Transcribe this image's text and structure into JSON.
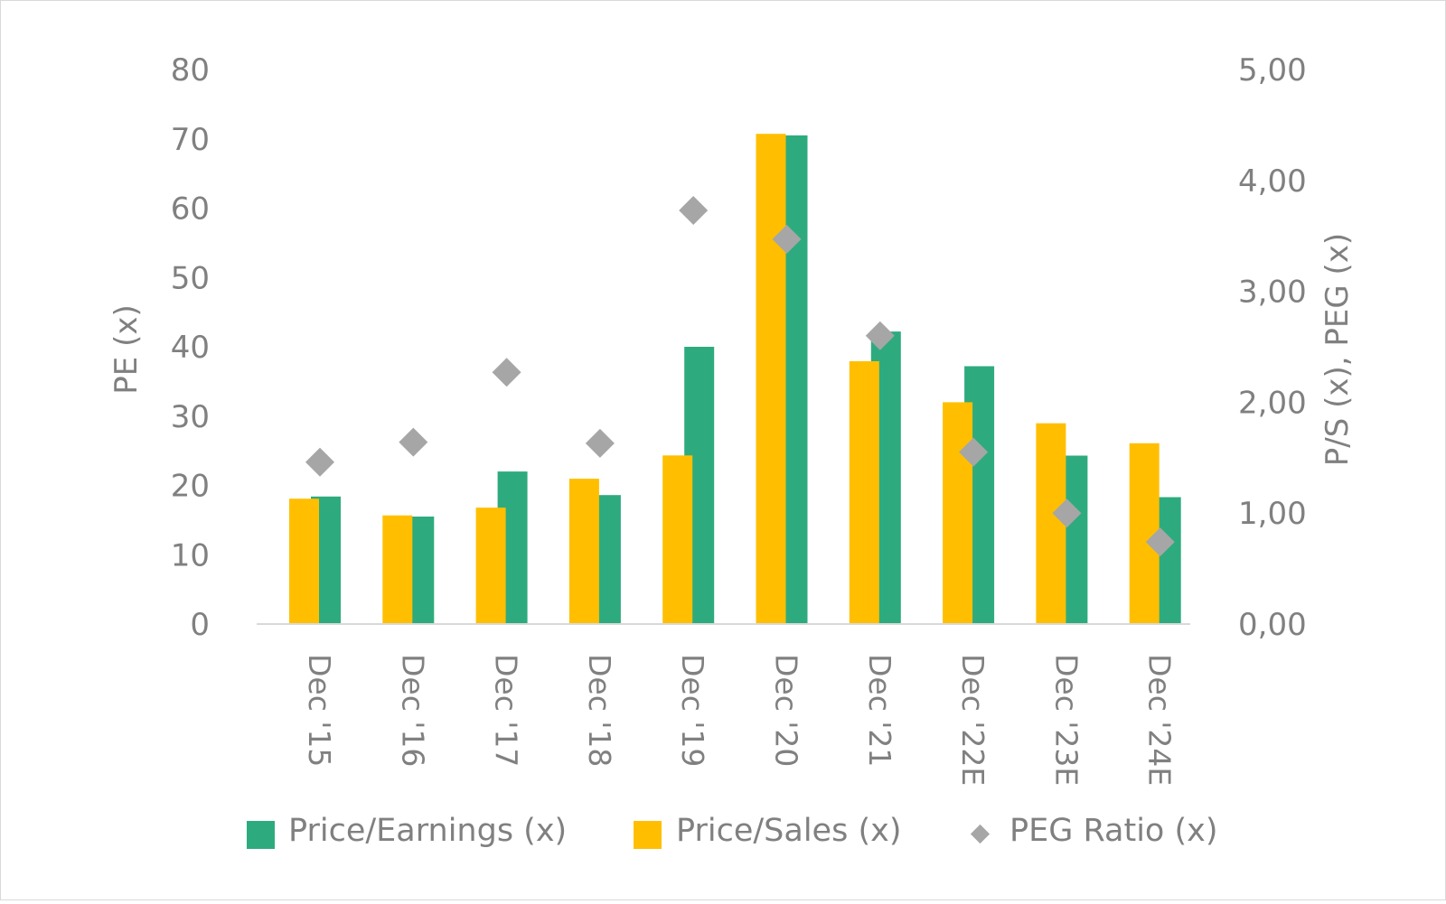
{
  "chart_data": {
    "type": "bar",
    "title": "",
    "categories": [
      "Dec '15",
      "Dec '16",
      "Dec '17",
      "Dec '18",
      "Dec '19",
      "Dec '20",
      "Dec '21",
      "Dec '22E",
      "Dec '23E",
      "Dec '24E"
    ],
    "series": [
      {
        "name": "Price/Earnings (x)",
        "type": "bar",
        "axis": "left",
        "color": "#2eab7e",
        "values": [
          18.4,
          15.5,
          22.0,
          18.6,
          40.0,
          70.5,
          42.2,
          37.2,
          24.3,
          18.3
        ]
      },
      {
        "name": "Price/Sales (x)",
        "type": "bar",
        "axis": "right",
        "color": "#ffbf00",
        "values": [
          1.13,
          0.98,
          1.05,
          1.31,
          1.52,
          4.42,
          2.37,
          2.0,
          1.81,
          1.63
        ]
      },
      {
        "name": "PEG Ratio (x)",
        "type": "scatter",
        "axis": "right",
        "color": "#a6a6a6",
        "values": [
          1.46,
          1.64,
          2.27,
          1.63,
          3.73,
          3.47,
          2.6,
          1.55,
          1.0,
          0.74
        ]
      }
    ],
    "y_left": {
      "label": "PE (x)",
      "ylim": [
        0,
        80
      ],
      "ticks": [
        "0",
        "10",
        "20",
        "30",
        "40",
        "50",
        "60",
        "70",
        "80"
      ]
    },
    "y_right": {
      "label": "P/S (x), PEG (x)",
      "ylim": [
        0,
        5
      ],
      "ticks": [
        "0,00",
        "1,00",
        "2,00",
        "3,00",
        "4,00",
        "5,00"
      ]
    },
    "grid": false,
    "legend_position": "bottom"
  }
}
